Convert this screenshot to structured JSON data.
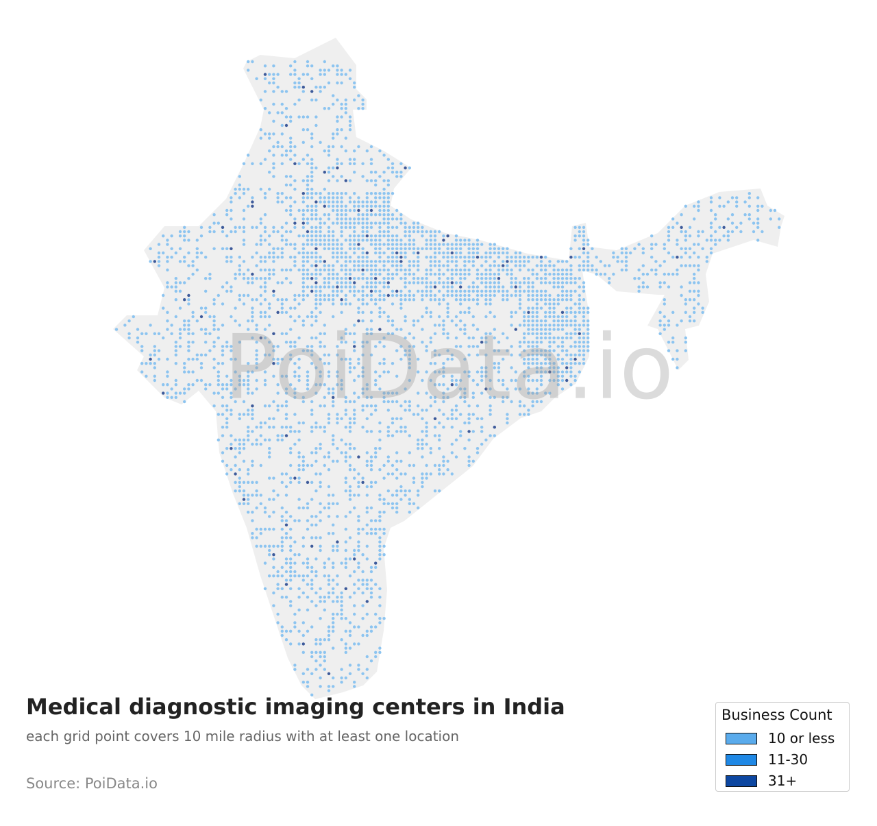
{
  "title": "Medical diagnostic imaging centers in India",
  "subtitle": "each grid point covers 10 mile radius with at least one location",
  "source": "Source: PoiData.io",
  "watermark": "PoiData.io",
  "legend": {
    "title": "Business Count",
    "items": [
      {
        "label": "10 or less",
        "color": "#5aabec"
      },
      {
        "label": "11-30",
        "color": "#1f88e5"
      },
      {
        "label": "31+",
        "color": "#0d47a1"
      }
    ]
  }
}
